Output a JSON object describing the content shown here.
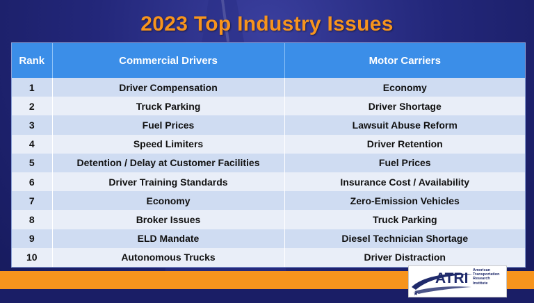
{
  "slide": {
    "title": "2023 Top Industry Issues"
  },
  "table": {
    "headers": {
      "rank": "Rank",
      "drivers": "Commercial Drivers",
      "carriers": "Motor Carriers"
    },
    "rows": [
      {
        "rank": "1",
        "drivers": "Driver Compensation",
        "carriers": "Economy"
      },
      {
        "rank": "2",
        "drivers": "Truck Parking",
        "carriers": "Driver Shortage"
      },
      {
        "rank": "3",
        "drivers": "Fuel Prices",
        "carriers": "Lawsuit Abuse Reform"
      },
      {
        "rank": "4",
        "drivers": "Speed Limiters",
        "carriers": "Driver Retention"
      },
      {
        "rank": "5",
        "drivers": "Detention / Delay at Customer Facilities",
        "carriers": "Fuel Prices"
      },
      {
        "rank": "6",
        "drivers": "Driver Training Standards",
        "carriers": "Insurance Cost / Availability"
      },
      {
        "rank": "7",
        "drivers": "Economy",
        "carriers": "Zero-Emission Vehicles"
      },
      {
        "rank": "8",
        "drivers": "Broker Issues",
        "carriers": "Truck Parking"
      },
      {
        "rank": "9",
        "drivers": "ELD Mandate",
        "carriers": "Diesel Technician Shortage"
      },
      {
        "rank": "10",
        "drivers": "Autonomous Trucks",
        "carriers": "Driver Distraction"
      }
    ]
  },
  "logo": {
    "name": "ATRI",
    "line1": "American",
    "line2": "Transportation",
    "line3": "Research",
    "line4": "Institute"
  },
  "colors": {
    "title": "#f7941d",
    "header_bg": "#3b8ee8",
    "row_odd": "#cfdcf2",
    "row_even": "#e9eef8",
    "band": "#f7941d",
    "background": "#23277a"
  }
}
